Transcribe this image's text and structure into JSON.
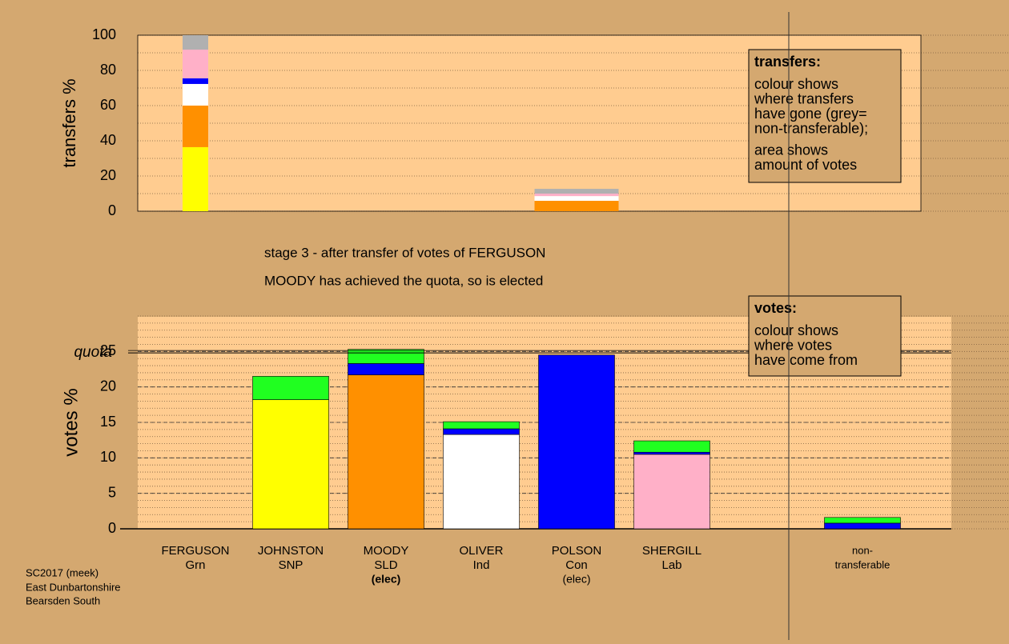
{
  "chart_data": [
    {
      "type": "stacked-bar",
      "ylabel": "transfers %",
      "categories": [
        "FERGUSON",
        "JOHNSTON",
        "MOODY",
        "OLIVER",
        "POLSON",
        "SHERGILL",
        null,
        "non-"
      ],
      "ylim": [
        0,
        100
      ],
      "yticks": [
        0,
        20,
        40,
        60,
        80,
        100
      ],
      "minor_step": 10,
      "series": [
        {
          "color": "#ffff00",
          "values": [
            36.4,
            null,
            null,
            null,
            null,
            null,
            null,
            null
          ]
        },
        {
          "color": "#ff9000",
          "values": [
            23.6,
            null,
            null,
            null,
            5.9,
            null,
            null,
            null
          ]
        },
        {
          "color": "#ffffff",
          "values": [
            12.3,
            null,
            null,
            null,
            2.7,
            null,
            null,
            null
          ]
        },
        {
          "color": "#0000ff",
          "values": [
            3.2,
            null,
            null,
            null,
            null,
            null,
            null,
            null
          ]
        },
        {
          "color": "#ffb0c8",
          "values": [
            16.3,
            null,
            null,
            null,
            1.4,
            null,
            null,
            null
          ]
        },
        {
          "color": "#b0b0b0",
          "values": [
            8.2,
            null,
            null,
            null,
            2.7,
            null,
            null,
            null
          ]
        }
      ],
      "legend": {
        "heading": "transfers:",
        "lines": [
          "colour shows",
          "where transfers",
          "have gone (grey=",
          "non-transferable);",
          "area shows",
          "amount of votes"
        ]
      }
    },
    {
      "type": "stacked-bar",
      "ylabel": "votes %",
      "title": "stage 3 - after transfer of votes of FERGUSON",
      "subtitle": "MOODY has achieved the quota, so is elected",
      "categories": [
        "FERGUSON",
        "JOHNSTON",
        "MOODY",
        "OLIVER",
        "POLSON",
        "SHERGILL",
        null,
        "non-"
      ],
      "sublabels": [
        "Grn",
        "SNP",
        "SLD",
        "Ind",
        "Con",
        "Lab",
        null,
        "transferable"
      ],
      "notes": [
        null,
        null,
        "(elec)",
        null,
        "(elec)",
        null,
        null,
        null
      ],
      "ylim": [
        0,
        30
      ],
      "yticks": [
        0,
        5,
        10,
        15,
        20,
        25
      ],
      "minor_step": 1,
      "quota": 24.8,
      "quota_label": "quota",
      "series": [
        {
          "color": "#ffff00",
          "values": [
            null,
            18.2,
            null,
            null,
            null,
            null,
            null,
            null
          ]
        },
        {
          "color": "#ff9000",
          "values": [
            null,
            null,
            21.7,
            null,
            null,
            null,
            null,
            null
          ]
        },
        {
          "color": "#ffffff",
          "values": [
            null,
            null,
            null,
            13.3,
            null,
            null,
            null,
            null
          ]
        },
        {
          "color": "#ffb0c8",
          "values": [
            null,
            null,
            null,
            null,
            null,
            10.5,
            null,
            null
          ]
        },
        {
          "color": "#0000ff",
          "values": [
            null,
            null,
            1.6,
            0.8,
            24.5,
            0.3,
            null,
            0.8
          ]
        },
        {
          "color": "#20ff20",
          "values": [
            null,
            3.3,
            2.0,
            1.0,
            null,
            1.6,
            null,
            0.8
          ]
        }
      ],
      "legend": {
        "heading": "votes:",
        "lines": [
          "colour shows",
          "where votes",
          "have come from"
        ]
      }
    }
  ],
  "footer": [
    "SC2017 (meek)",
    "East Dunbartonshire",
    "Bearsden South"
  ]
}
